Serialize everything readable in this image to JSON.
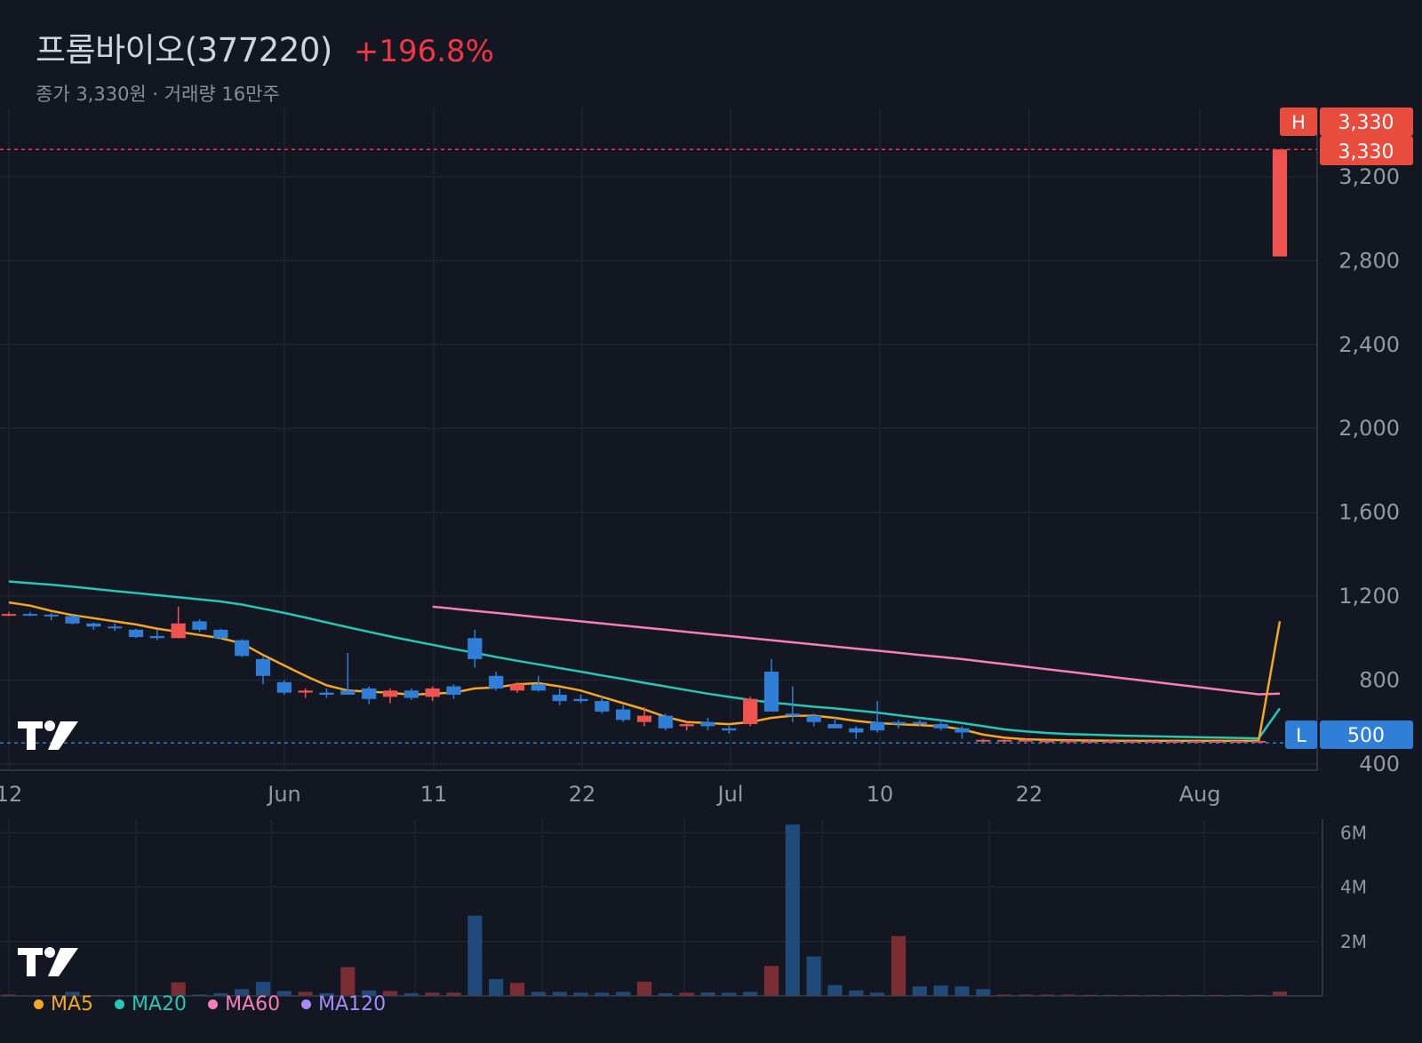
{
  "header": {
    "stock_name": "프롬바이오(377220)",
    "change": "+196.8%",
    "subtitle": "종가 3,330원 · 거래량 16만주"
  },
  "colors": {
    "background": "#131722",
    "up": "#f23645",
    "down": "#2962ff",
    "up_candle": "#ef5350",
    "down_candle": "#2f7fd9",
    "ma5": "#f5a623",
    "ma20": "#26c6b8",
    "ma60": "#f77eb9",
    "ma120": "#a78bfa"
  },
  "logo_icon": "tradingview-logo-icon",
  "price_labels": {
    "high_tag": "H",
    "high_value": "3,330",
    "last_value": "3,330",
    "low_tag": "L",
    "low_value": "500"
  },
  "legend": [
    {
      "label": "MA5",
      "color": "#f5a623"
    },
    {
      "label": "MA20",
      "color": "#26c6b8"
    },
    {
      "label": "MA60",
      "color": "#f77eb9"
    },
    {
      "label": "MA120",
      "color": "#a78bfa"
    }
  ],
  "chart_data": {
    "type": "candlestick",
    "x_tick_labels": [
      "12",
      "Jun",
      "11",
      "22",
      "Jul",
      "10",
      "22",
      "Aug"
    ],
    "y_ticks": [
      400,
      800,
      1200,
      1600,
      2000,
      2400,
      2800,
      3200
    ],
    "y_tick_labels": [
      "400",
      "800",
      "1,200",
      "1,600",
      "2,000",
      "2,400",
      "2,800",
      "3,200"
    ],
    "ylim": [
      370,
      3530
    ],
    "high_line": 3330,
    "low_line": 500,
    "candles": [
      [
        1110,
        1125,
        1105,
        1115
      ],
      [
        1115,
        1125,
        1105,
        1112
      ],
      [
        1112,
        1120,
        1085,
        1105
      ],
      [
        1105,
        1110,
        1065,
        1070
      ],
      [
        1070,
        1075,
        1040,
        1055
      ],
      [
        1055,
        1070,
        1035,
        1050
      ],
      [
        1040,
        1045,
        1000,
        1005
      ],
      [
        1010,
        1040,
        990,
        1000
      ],
      [
        1000,
        1150,
        1000,
        1070
      ],
      [
        1080,
        1090,
        1030,
        1040
      ],
      [
        1040,
        1045,
        995,
        1000
      ],
      [
        990,
        995,
        910,
        915
      ],
      [
        900,
        910,
        780,
        820
      ],
      [
        790,
        800,
        730,
        740
      ],
      [
        740,
        760,
        715,
        750
      ],
      [
        740,
        760,
        715,
        730
      ],
      [
        750,
        930,
        740,
        730
      ],
      [
        760,
        770,
        685,
        710
      ],
      [
        720,
        760,
        690,
        750
      ],
      [
        750,
        760,
        705,
        715
      ],
      [
        720,
        770,
        700,
        760
      ],
      [
        770,
        780,
        710,
        730
      ],
      [
        1000,
        1040,
        860,
        900
      ],
      [
        820,
        840,
        750,
        760
      ],
      [
        750,
        790,
        740,
        780
      ],
      [
        780,
        820,
        745,
        750
      ],
      [
        730,
        760,
        680,
        700
      ],
      [
        710,
        730,
        690,
        700
      ],
      [
        700,
        720,
        640,
        650
      ],
      [
        660,
        680,
        600,
        610
      ],
      [
        600,
        670,
        580,
        630
      ],
      [
        630,
        640,
        560,
        570
      ],
      [
        580,
        600,
        560,
        590
      ],
      [
        600,
        620,
        560,
        580
      ],
      [
        570,
        580,
        545,
        560
      ],
      [
        590,
        720,
        580,
        710
      ],
      [
        840,
        900,
        650,
        650
      ],
      [
        640,
        770,
        600,
        630
      ],
      [
        630,
        640,
        580,
        600
      ],
      [
        590,
        620,
        570,
        570
      ],
      [
        570,
        580,
        520,
        550
      ],
      [
        600,
        700,
        550,
        560
      ],
      [
        600,
        610,
        570,
        590
      ],
      [
        600,
        610,
        580,
        590
      ],
      [
        590,
        600,
        560,
        570
      ],
      [
        570,
        580,
        520,
        550
      ],
      [
        510,
        520,
        505,
        515
      ],
      [
        510,
        518,
        505,
        515
      ],
      [
        510,
        520,
        505,
        515
      ],
      [
        510,
        515,
        505,
        512
      ],
      [
        510,
        515,
        505,
        512
      ],
      [
        510,
        515,
        505,
        510
      ],
      [
        510,
        515,
        505,
        510
      ],
      [
        510,
        512,
        505,
        510
      ],
      [
        510,
        512,
        505,
        510
      ],
      [
        510,
        512,
        505,
        510
      ],
      [
        510,
        512,
        505,
        510
      ],
      [
        510,
        512,
        505,
        510
      ],
      [
        510,
        512,
        505,
        510
      ],
      [
        510,
        512,
        505,
        510
      ],
      [
        2820,
        3330,
        2820,
        3330
      ]
    ],
    "ma5": [
      1170,
      1155,
      1130,
      1110,
      1095,
      1080,
      1065,
      1045,
      1030,
      1015,
      1000,
      975,
      920,
      870,
      820,
      775,
      750,
      745,
      740,
      730,
      735,
      740,
      760,
      765,
      780,
      785,
      770,
      750,
      720,
      690,
      660,
      625,
      600,
      595,
      590,
      600,
      620,
      630,
      630,
      620,
      605,
      595,
      590,
      585,
      580,
      565,
      540,
      525,
      518,
      515,
      513,
      512,
      511,
      510,
      510,
      510,
      510,
      510,
      510,
      510,
      1080
    ],
    "ma20": [
      1270,
      1262,
      1255,
      1245,
      1235,
      1225,
      1215,
      1205,
      1195,
      1185,
      1175,
      1160,
      1140,
      1120,
      1098,
      1075,
      1052,
      1030,
      1008,
      988,
      968,
      948,
      930,
      910,
      892,
      875,
      857,
      840,
      822,
      805,
      787,
      770,
      752,
      735,
      720,
      705,
      693,
      683,
      673,
      665,
      655,
      645,
      632,
      620,
      608,
      595,
      580,
      565,
      555,
      548,
      543,
      540,
      537,
      534,
      532,
      530,
      528,
      526,
      524,
      522,
      665
    ],
    "ma60": [
      null,
      null,
      null,
      null,
      null,
      null,
      null,
      null,
      null,
      null,
      null,
      null,
      null,
      null,
      null,
      null,
      null,
      null,
      null,
      null,
      1150,
      1140,
      1130,
      1120,
      1110,
      1100,
      1090,
      1080,
      1070,
      1060,
      1050,
      1040,
      1030,
      1020,
      1010,
      1000,
      990,
      980,
      970,
      960,
      950,
      940,
      930,
      920,
      910,
      900,
      888,
      876,
      864,
      852,
      840,
      828,
      816,
      804,
      792,
      780,
      768,
      756,
      744,
      732,
      735
    ],
    "volume": [
      [
        0.05,
        "up"
      ],
      [
        0.02,
        "down"
      ],
      [
        0.03,
        "down"
      ],
      [
        0.15,
        "down"
      ],
      [
        0.03,
        "down"
      ],
      [
        0.03,
        "down"
      ],
      [
        0.02,
        "down"
      ],
      [
        0.03,
        "down"
      ],
      [
        0.5,
        "up"
      ],
      [
        0.05,
        "down"
      ],
      [
        0.1,
        "down"
      ],
      [
        0.25,
        "down"
      ],
      [
        0.52,
        "down"
      ],
      [
        0.18,
        "down"
      ],
      [
        0.15,
        "up"
      ],
      [
        0.1,
        "down"
      ],
      [
        1.06,
        "up"
      ],
      [
        0.2,
        "down"
      ],
      [
        0.18,
        "up"
      ],
      [
        0.1,
        "down"
      ],
      [
        0.12,
        "up"
      ],
      [
        0.12,
        "up"
      ],
      [
        2.95,
        "down"
      ],
      [
        0.62,
        "down"
      ],
      [
        0.48,
        "up"
      ],
      [
        0.15,
        "down"
      ],
      [
        0.15,
        "down"
      ],
      [
        0.12,
        "down"
      ],
      [
        0.12,
        "down"
      ],
      [
        0.15,
        "down"
      ],
      [
        0.52,
        "up"
      ],
      [
        0.1,
        "down"
      ],
      [
        0.12,
        "up"
      ],
      [
        0.13,
        "down"
      ],
      [
        0.12,
        "down"
      ],
      [
        0.15,
        "down"
      ],
      [
        1.1,
        "up"
      ],
      [
        6.3,
        "down"
      ],
      [
        1.45,
        "down"
      ],
      [
        0.4,
        "down"
      ],
      [
        0.2,
        "down"
      ],
      [
        0.12,
        "down"
      ],
      [
        2.2,
        "up"
      ],
      [
        0.35,
        "down"
      ],
      [
        0.38,
        "down"
      ],
      [
        0.35,
        "down"
      ],
      [
        0.25,
        "down"
      ],
      [
        0.05,
        "up"
      ],
      [
        0.05,
        "up"
      ],
      [
        0.05,
        "up"
      ],
      [
        0.05,
        "up"
      ],
      [
        0.04,
        "up"
      ],
      [
        0.04,
        "up"
      ],
      [
        0.04,
        "up"
      ],
      [
        0.04,
        "up"
      ],
      [
        0.04,
        "up"
      ],
      [
        0.04,
        "up"
      ],
      [
        0.04,
        "up"
      ],
      [
        0.04,
        "up"
      ],
      [
        0.04,
        "up"
      ],
      [
        0.16,
        "up"
      ]
    ],
    "volume_y_ticks": [
      2,
      4,
      6
    ],
    "volume_y_tick_labels": [
      "2M",
      "4M",
      "6M"
    ],
    "volume_ylim": [
      0,
      6.5
    ]
  }
}
